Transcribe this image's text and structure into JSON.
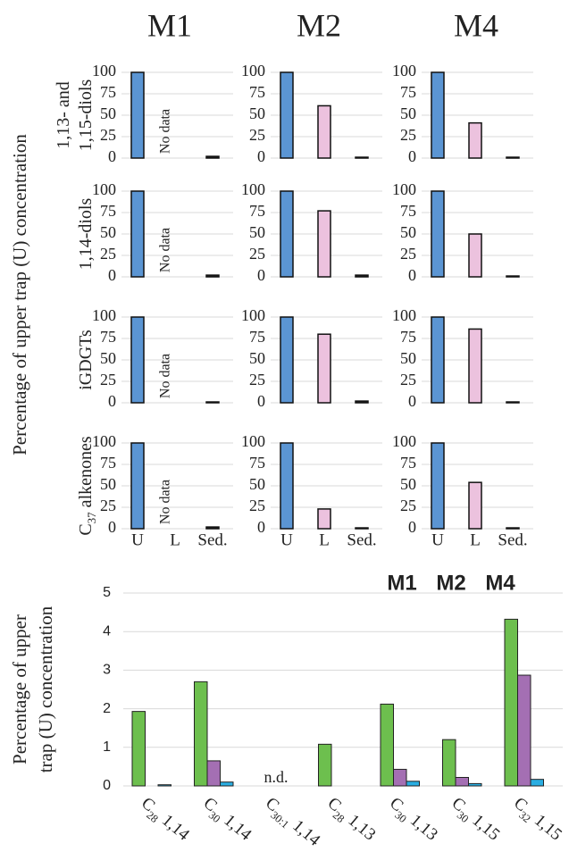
{
  "chart_data": [
    {
      "type": "bar-grid",
      "ylabel": "Percentage of upper trap (U) concentration",
      "columns": [
        "M1",
        "M2",
        "M4"
      ],
      "categories": [
        "U",
        "L",
        "Sed."
      ],
      "colors": [
        "#5b95d3",
        "#ecc2de",
        "#222222"
      ],
      "annotation": "No data",
      "ylim": [
        0,
        100
      ],
      "yticks": [
        0,
        25,
        50,
        75,
        100
      ],
      "grid": true,
      "rows": [
        {
          "label": [
            [
              "1,13- and"
            ],
            [
              "1,15-diols"
            ]
          ],
          "values": [
            [
              100,
              null,
              2
            ],
            [
              100,
              61,
              1
            ],
            [
              100,
              41,
              1
            ]
          ]
        },
        {
          "label": [
            [
              "1,14-diols"
            ]
          ],
          "values": [
            [
              100,
              null,
              2
            ],
            [
              100,
              77,
              2
            ],
            [
              100,
              50,
              1
            ]
          ]
        },
        {
          "label": [
            [
              "iGDGTs"
            ]
          ],
          "values": [
            [
              100,
              null,
              1
            ],
            [
              100,
              80,
              2
            ],
            [
              100,
              86,
              1
            ]
          ]
        },
        {
          "label": [
            [
              "C",
              "37",
              " alkenones"
            ]
          ],
          "values": [
            [
              100,
              null,
              2
            ],
            [
              100,
              23,
              1
            ],
            [
              100,
              54,
              1
            ]
          ]
        }
      ]
    },
    {
      "type": "grouped-bar",
      "ylabel": [
        "Percentage of upper",
        "trap (U) concentration"
      ],
      "categories": [
        [
          "C",
          "28",
          " 1,14"
        ],
        [
          "C",
          "30",
          " 1,14"
        ],
        [
          "C",
          "30:1",
          " 1,14"
        ],
        [
          "C",
          "28",
          " 1,13"
        ],
        [
          "C",
          "30",
          " 1,13"
        ],
        [
          "C",
          "30",
          " 1,15"
        ],
        [
          "C",
          "32",
          " 1,15"
        ]
      ],
      "annotation": "n.d.",
      "ylim": [
        0,
        5
      ],
      "yticks": [
        0,
        1,
        2,
        3,
        4,
        5
      ],
      "grid": true,
      "legend": "top-right",
      "series": [
        {
          "name": "M1",
          "color": "#6dbf4e",
          "values": [
            1.93,
            2.7,
            null,
            1.08,
            2.12,
            1.2,
            4.32
          ]
        },
        {
          "name": "M2",
          "color": "#a46fb3",
          "values": [
            null,
            0.65,
            null,
            null,
            0.43,
            0.22,
            2.87
          ]
        },
        {
          "name": "M4",
          "color": "#2aaee2",
          "values": [
            0.03,
            0.1,
            null,
            null,
            0.12,
            0.06,
            0.17
          ]
        }
      ]
    }
  ]
}
